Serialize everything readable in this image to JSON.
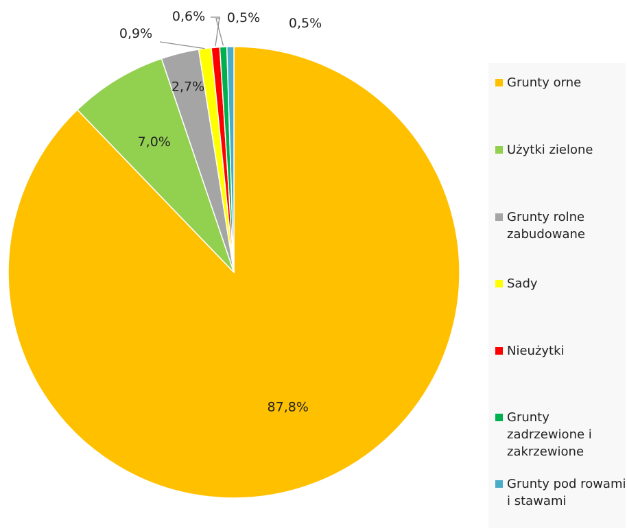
{
  "chart_data": {
    "type": "pie",
    "title": "",
    "legend_position": "right",
    "slices": [
      {
        "name": "Grunty orne",
        "value": 87.8,
        "label": "87,8%",
        "color": "#FFC000"
      },
      {
        "name": "Użytki zielone",
        "value": 7.0,
        "label": "7,0%",
        "color": "#92D050"
      },
      {
        "name": "Grunty rolne zabudowane",
        "value": 2.7,
        "label": "2,7%",
        "color": "#A5A5A5"
      },
      {
        "name": "Sady",
        "value": 0.9,
        "label": "0,9%",
        "color": "#FFFF00"
      },
      {
        "name": "Nieużytki",
        "value": 0.6,
        "label": "0,6%",
        "color": "#FF0000"
      },
      {
        "name": "Grunty zadrzewione i zakrzewione",
        "value": 0.5,
        "label": "0,5%",
        "color": "#00B050"
      },
      {
        "name": "Grunty pod rowami i stawami",
        "value": 0.5,
        "label": "0,5%",
        "color": "#4BACC6"
      }
    ]
  }
}
